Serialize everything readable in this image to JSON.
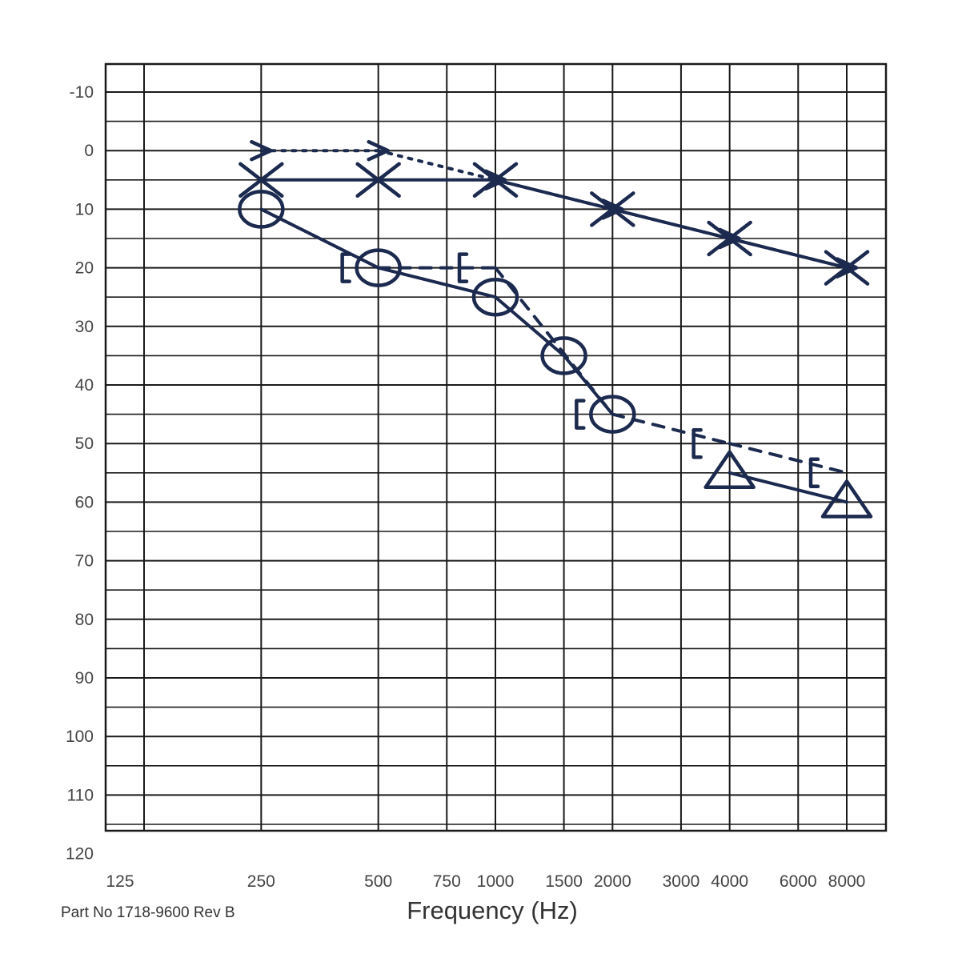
{
  "chart_data": {
    "type": "scatter",
    "title": "",
    "xlabel": "Frequency (Hz)",
    "ylabel": "",
    "footer_text": "Part No 1718-9600 Rev B",
    "x_scale": "log",
    "y_inverted": true,
    "ylim": [
      -10,
      120
    ],
    "grid": true,
    "y_ticks": [
      "-10",
      "0",
      "10",
      "20",
      "30",
      "40",
      "50",
      "60",
      "70",
      "80",
      "90",
      "100",
      "110",
      "120"
    ],
    "x_ticks": [
      {
        "value": 125,
        "label": "125"
      },
      {
        "value": 250,
        "label": "250"
      },
      {
        "value": 500,
        "label": "500"
      },
      {
        "value": 750,
        "label": "750"
      },
      {
        "value": 1000,
        "label": "1000"
      },
      {
        "value": 1500,
        "label": "1500"
      },
      {
        "value": 2000,
        "label": "2000"
      },
      {
        "value": 3000,
        "label": "3000"
      },
      {
        "value": 4000,
        "label": "4000"
      },
      {
        "value": 6000,
        "label": "6000"
      },
      {
        "value": 8000,
        "label": "8000"
      }
    ],
    "series": [
      {
        "key": "x-marks",
        "symbol": "X",
        "line": "solid",
        "color": "#1b2a4e",
        "x": [
          250,
          500,
          1000,
          2000,
          4000,
          8000
        ],
        "y": [
          5,
          5,
          5,
          10,
          15,
          20
        ]
      },
      {
        "key": "gt-marks",
        "symbol": ">",
        "line": "dotted",
        "color": "#1b2a4e",
        "x": [
          250,
          500,
          1000,
          2000,
          4000,
          8000
        ],
        "y": [
          0,
          0,
          5,
          10,
          15,
          20
        ]
      },
      {
        "key": "o-marks",
        "symbol": "O",
        "line": "solid",
        "color": "#1b2a4e",
        "x": [
          250,
          500,
          1000,
          1500,
          2000
        ],
        "y": [
          10,
          20,
          25,
          35,
          45
        ]
      },
      {
        "key": "bracket-marks",
        "symbol": "[",
        "line": "dashed",
        "color": "#1b2a4e",
        "x": [
          500,
          1000,
          2000,
          4000,
          8000
        ],
        "y": [
          20,
          20,
          45,
          50,
          55
        ]
      },
      {
        "key": "triangle-marks",
        "symbol": "triangle",
        "line": "solid",
        "color": "#1b2a4e",
        "x": [
          4000,
          8000
        ],
        "y": [
          55,
          60
        ]
      }
    ]
  }
}
